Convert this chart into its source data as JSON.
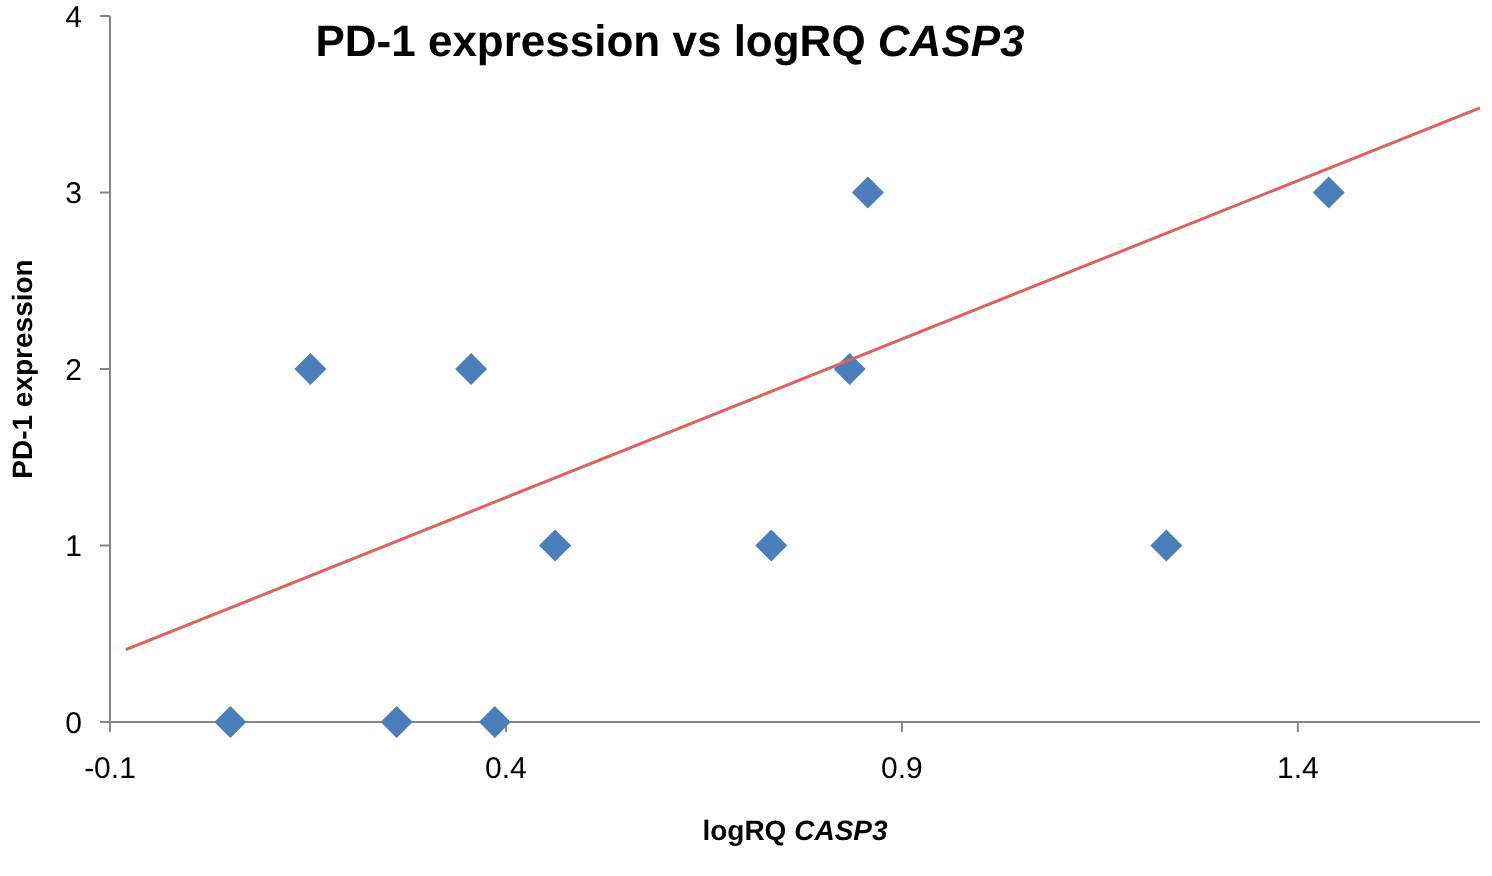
{
  "chart_data": {
    "type": "scatter",
    "title": "PD-1 expression vs logRQ CASP3",
    "xlabel": "logRQ CASP3",
    "ylabel": "PD-1 expression",
    "xlim": [
      -0.1,
      1.63
    ],
    "xticks": [
      -0.1,
      0.4,
      0.9,
      1.4
    ],
    "ylim": [
      0,
      4
    ],
    "yticks": [
      0,
      1,
      2,
      3,
      4
    ],
    "grid": false,
    "series": [
      {
        "marker": "diamond",
        "color": "#4a7ebb",
        "x": [
          0.052,
          0.153,
          0.262,
          0.356,
          0.386,
          0.462,
          0.735,
          0.834,
          0.857,
          1.234,
          1.439
        ],
        "values": [
          0,
          2,
          0,
          2,
          0,
          1,
          1,
          2,
          3,
          1,
          3
        ]
      },
      {
        "type": "line",
        "color": "#e0605a",
        "x": [
          -0.08,
          1.63
        ],
        "values": [
          0.41,
          3.48
        ]
      }
    ]
  }
}
